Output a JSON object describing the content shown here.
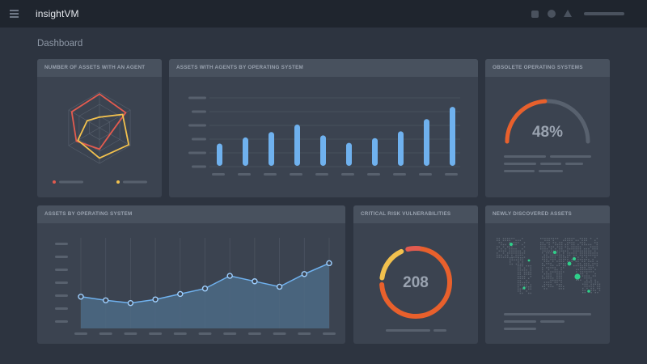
{
  "app": {
    "brand": "insightVM"
  },
  "page": {
    "title": "Dashboard"
  },
  "cards": {
    "agents": {
      "title": "NUMBER OF ASSETS WITH AN AGENT",
      "legend_colors": [
        "#e35b4f",
        "#f2c14e"
      ]
    },
    "os_bars": {
      "title": "ASSETS WITH AGENTS BY OPERATING SYSTEM"
    },
    "obsolete": {
      "title": "OBSOLETE OPERATING SYSTEMS",
      "value": "48%",
      "percent": 48
    },
    "assets_os": {
      "title": "ASSETS BY OPERATING SYSTEM"
    },
    "critical": {
      "title": "CRITICAL RISK VULNERABILITIES",
      "value": "208"
    },
    "discovered": {
      "title": "NEWLY DISCOVERED ASSETS"
    }
  },
  "colors": {
    "accent_blue": "#6fb1ee",
    "orange": "#e8602c",
    "red": "#e35b4f",
    "yellow": "#f2c14e",
    "green": "#2fd08a"
  },
  "chart_data": [
    {
      "type": "radar",
      "axes": 6,
      "series": [
        {
          "values": [
            0.95,
            0.85,
            0.35,
            0.6,
            0.75,
            0.9
          ]
        },
        {
          "values": [
            0.3,
            0.75,
            0.95,
            0.85,
            0.7,
            0.4
          ]
        }
      ]
    },
    {
      "type": "bar",
      "values": [
        28,
        37,
        45,
        56,
        40,
        29,
        36,
        46,
        64,
        82
      ],
      "ylim": [
        0,
        100
      ]
    },
    {
      "type": "area",
      "values": [
        35,
        31,
        28,
        32,
        38,
        44,
        58,
        52,
        46,
        60,
        72
      ],
      "ylim": [
        0,
        100
      ]
    },
    {
      "type": "donut",
      "segments": [
        {
          "color": "#e8602c",
          "fraction": 0.72
        },
        {
          "color": "#f2c14e",
          "fraction": 0.16
        },
        {
          "color": "#e35b4f",
          "fraction": 0.05
        }
      ]
    }
  ]
}
